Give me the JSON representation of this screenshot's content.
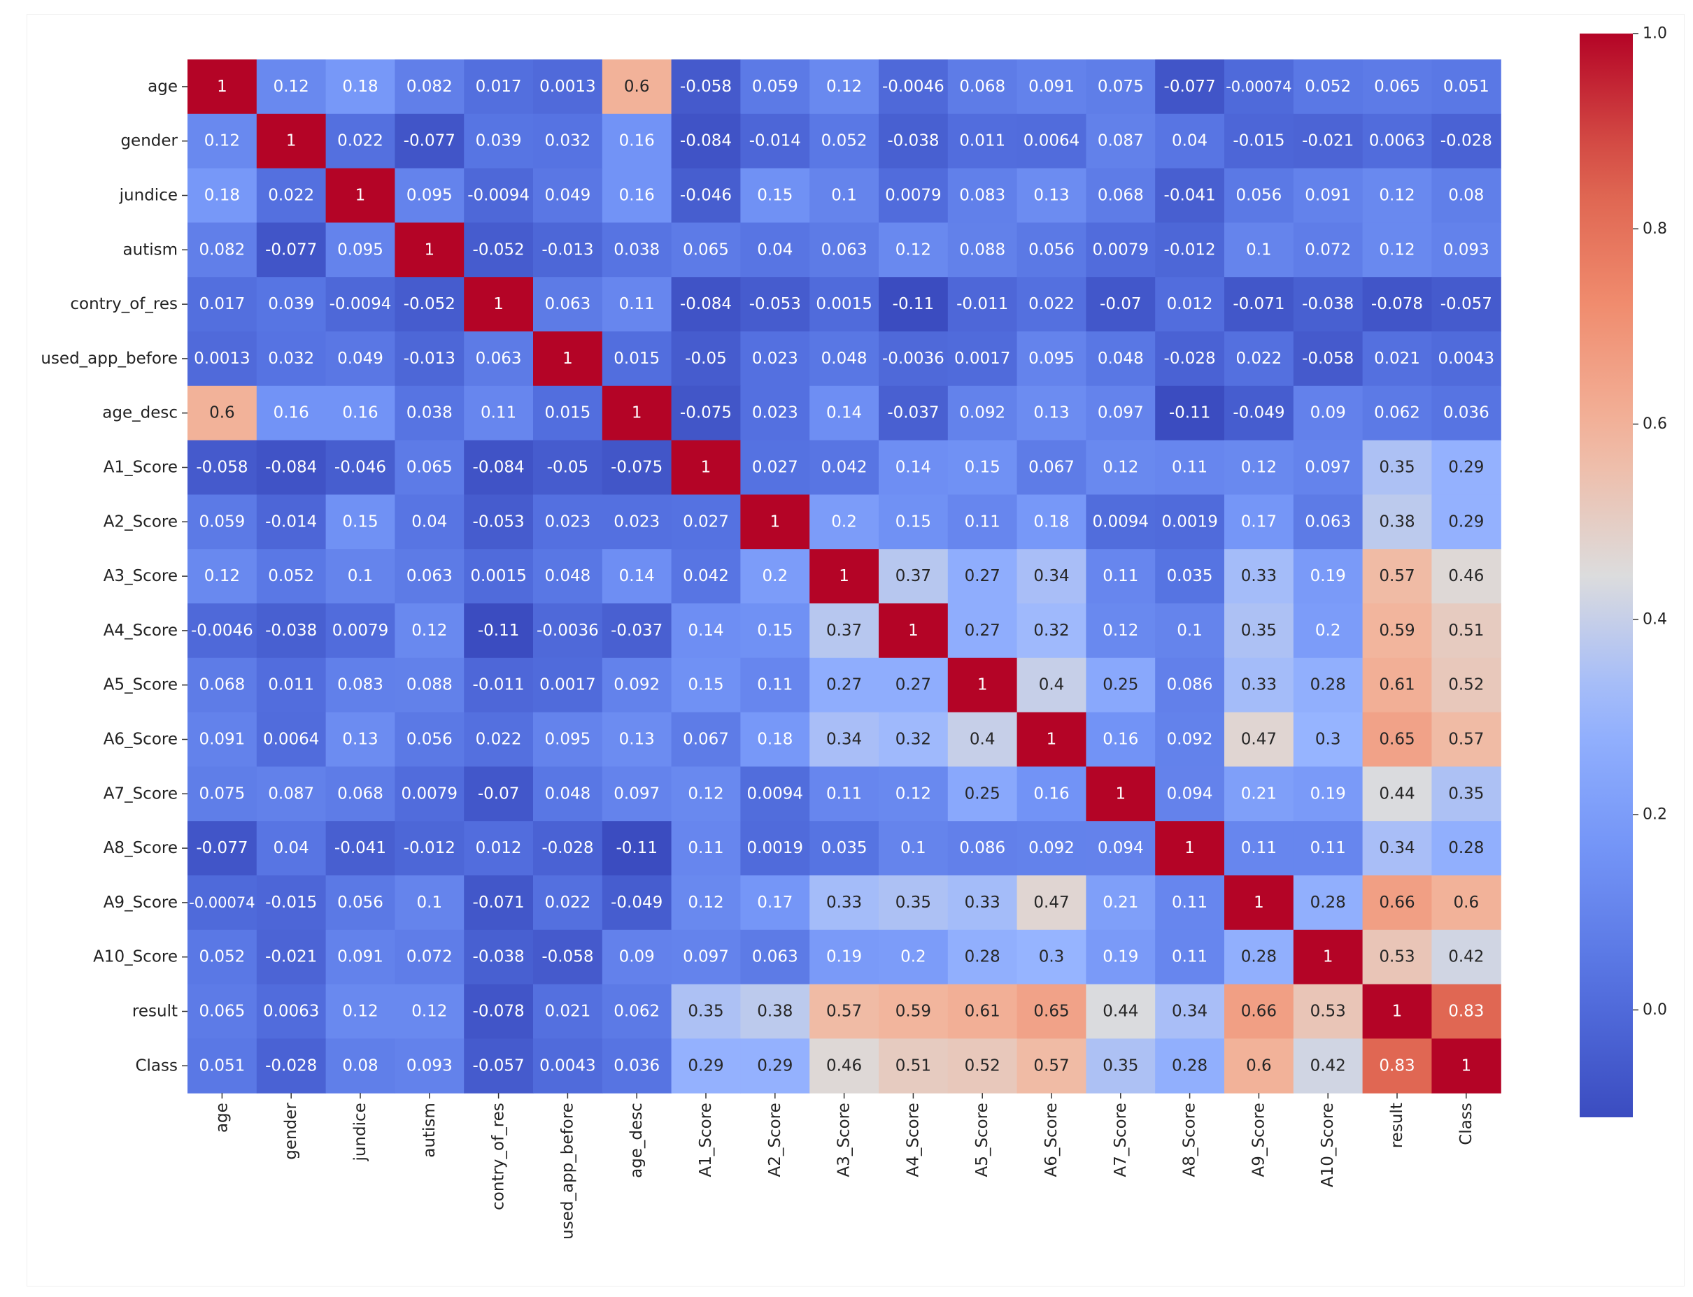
{
  "chart_data": {
    "type": "heatmap",
    "title": "",
    "xlabel": "",
    "ylabel": "",
    "colormap": "coolwarm",
    "vmin": -0.11,
    "vmax": 1.0,
    "colorbar_ticks": [
      "0.0",
      "0.2",
      "0.4",
      "0.6",
      "0.8",
      "1.0"
    ],
    "colorbar_tick_values": [
      0.0,
      0.2,
      0.4,
      0.6,
      0.8,
      1.0
    ],
    "row_labels": [
      "age",
      "gender",
      "jundice",
      "autism",
      "contry_of_res",
      "used_app_before",
      "age_desc",
      "A1_Score",
      "A2_Score",
      "A3_Score",
      "A4_Score",
      "A5_Score",
      "A6_Score",
      "A7_Score",
      "A8_Score",
      "A9_Score",
      "A10_Score",
      "result",
      "Class"
    ],
    "col_labels": [
      "age",
      "gender",
      "jundice",
      "autism",
      "contry_of_res",
      "used_app_before",
      "age_desc",
      "A1_Score",
      "A2_Score",
      "A3_Score",
      "A4_Score",
      "A5_Score",
      "A6_Score",
      "A7_Score",
      "A8_Score",
      "A9_Score",
      "A10_Score",
      "result",
      "Class"
    ],
    "cell_labels": [
      [
        "1",
        "0.12",
        "0.18",
        "0.082",
        "0.017",
        "0.0013",
        "0.6",
        "-0.058",
        "0.059",
        "0.12",
        "-0.0046",
        "0.068",
        "0.091",
        "0.075",
        "-0.077",
        "-0.00074",
        "0.052",
        "0.065",
        "0.051"
      ],
      [
        "0.12",
        "1",
        "0.022",
        "-0.077",
        "0.039",
        "0.032",
        "0.16",
        "-0.084",
        "-0.014",
        "0.052",
        "-0.038",
        "0.011",
        "0.0064",
        "0.087",
        "0.04",
        "-0.015",
        "-0.021",
        "0.0063",
        "-0.028"
      ],
      [
        "0.18",
        "0.022",
        "1",
        "0.095",
        "-0.0094",
        "0.049",
        "0.16",
        "-0.046",
        "0.15",
        "0.1",
        "0.0079",
        "0.083",
        "0.13",
        "0.068",
        "-0.041",
        "0.056",
        "0.091",
        "0.12",
        "0.08"
      ],
      [
        "0.082",
        "-0.077",
        "0.095",
        "1",
        "-0.052",
        "-0.013",
        "0.038",
        "0.065",
        "0.04",
        "0.063",
        "0.12",
        "0.088",
        "0.056",
        "0.0079",
        "-0.012",
        "0.1",
        "0.072",
        "0.12",
        "0.093"
      ],
      [
        "0.017",
        "0.039",
        "-0.0094",
        "-0.052",
        "1",
        "0.063",
        "0.11",
        "-0.084",
        "-0.053",
        "0.0015",
        "-0.11",
        "-0.011",
        "0.022",
        "-0.07",
        "0.012",
        "-0.071",
        "-0.038",
        "-0.078",
        "-0.057"
      ],
      [
        "0.0013",
        "0.032",
        "0.049",
        "-0.013",
        "0.063",
        "1",
        "0.015",
        "-0.05",
        "0.023",
        "0.048",
        "-0.0036",
        "0.0017",
        "0.095",
        "0.048",
        "-0.028",
        "0.022",
        "-0.058",
        "0.021",
        "0.0043"
      ],
      [
        "0.6",
        "0.16",
        "0.16",
        "0.038",
        "0.11",
        "0.015",
        "1",
        "-0.075",
        "0.023",
        "0.14",
        "-0.037",
        "0.092",
        "0.13",
        "0.097",
        "-0.11",
        "-0.049",
        "0.09",
        "0.062",
        "0.036"
      ],
      [
        "-0.058",
        "-0.084",
        "-0.046",
        "0.065",
        "-0.084",
        "-0.05",
        "-0.075",
        "1",
        "0.027",
        "0.042",
        "0.14",
        "0.15",
        "0.067",
        "0.12",
        "0.11",
        "0.12",
        "0.097",
        "0.35",
        "0.29"
      ],
      [
        "0.059",
        "-0.014",
        "0.15",
        "0.04",
        "-0.053",
        "0.023",
        "0.023",
        "0.027",
        "1",
        "0.2",
        "0.15",
        "0.11",
        "0.18",
        "0.0094",
        "0.0019",
        "0.17",
        "0.063",
        "0.38",
        "0.29"
      ],
      [
        "0.12",
        "0.052",
        "0.1",
        "0.063",
        "0.0015",
        "0.048",
        "0.14",
        "0.042",
        "0.2",
        "1",
        "0.37",
        "0.27",
        "0.34",
        "0.11",
        "0.035",
        "0.33",
        "0.19",
        "0.57",
        "0.46"
      ],
      [
        "-0.0046",
        "-0.038",
        "0.0079",
        "0.12",
        "-0.11",
        "-0.0036",
        "-0.037",
        "0.14",
        "0.15",
        "0.37",
        "1",
        "0.27",
        "0.32",
        "0.12",
        "0.1",
        "0.35",
        "0.2",
        "0.59",
        "0.51"
      ],
      [
        "0.068",
        "0.011",
        "0.083",
        "0.088",
        "-0.011",
        "0.0017",
        "0.092",
        "0.15",
        "0.11",
        "0.27",
        "0.27",
        "1",
        "0.4",
        "0.25",
        "0.086",
        "0.33",
        "0.28",
        "0.61",
        "0.52"
      ],
      [
        "0.091",
        "0.0064",
        "0.13",
        "0.056",
        "0.022",
        "0.095",
        "0.13",
        "0.067",
        "0.18",
        "0.34",
        "0.32",
        "0.4",
        "1",
        "0.16",
        "0.092",
        "0.47",
        "0.3",
        "0.65",
        "0.57"
      ],
      [
        "0.075",
        "0.087",
        "0.068",
        "0.0079",
        "-0.07",
        "0.048",
        "0.097",
        "0.12",
        "0.0094",
        "0.11",
        "0.12",
        "0.25",
        "0.16",
        "1",
        "0.094",
        "0.21",
        "0.19",
        "0.44",
        "0.35"
      ],
      [
        "-0.077",
        "0.04",
        "-0.041",
        "-0.012",
        "0.012",
        "-0.028",
        "-0.11",
        "0.11",
        "0.0019",
        "0.035",
        "0.1",
        "0.086",
        "0.092",
        "0.094",
        "1",
        "0.11",
        "0.11",
        "0.34",
        "0.28"
      ],
      [
        "-0.00074",
        "-0.015",
        "0.056",
        "0.1",
        "-0.071",
        "0.022",
        "-0.049",
        "0.12",
        "0.17",
        "0.33",
        "0.35",
        "0.33",
        "0.47",
        "0.21",
        "0.11",
        "1",
        "0.28",
        "0.66",
        "0.6"
      ],
      [
        "0.052",
        "-0.021",
        "0.091",
        "0.072",
        "-0.038",
        "-0.058",
        "0.09",
        "0.097",
        "0.063",
        "0.19",
        "0.2",
        "0.28",
        "0.3",
        "0.19",
        "0.11",
        "0.28",
        "1",
        "0.53",
        "0.42"
      ],
      [
        "0.065",
        "0.0063",
        "0.12",
        "0.12",
        "-0.078",
        "0.021",
        "0.062",
        "0.35",
        "0.38",
        "0.57",
        "0.59",
        "0.61",
        "0.65",
        "0.44",
        "0.34",
        "0.66",
        "0.53",
        "1",
        "0.83"
      ],
      [
        "0.051",
        "-0.028",
        "0.08",
        "0.093",
        "-0.057",
        "0.0043",
        "0.036",
        "0.29",
        "0.29",
        "0.46",
        "0.51",
        "0.52",
        "0.57",
        "0.35",
        "0.28",
        "0.6",
        "0.42",
        "0.83",
        "1"
      ]
    ]
  }
}
